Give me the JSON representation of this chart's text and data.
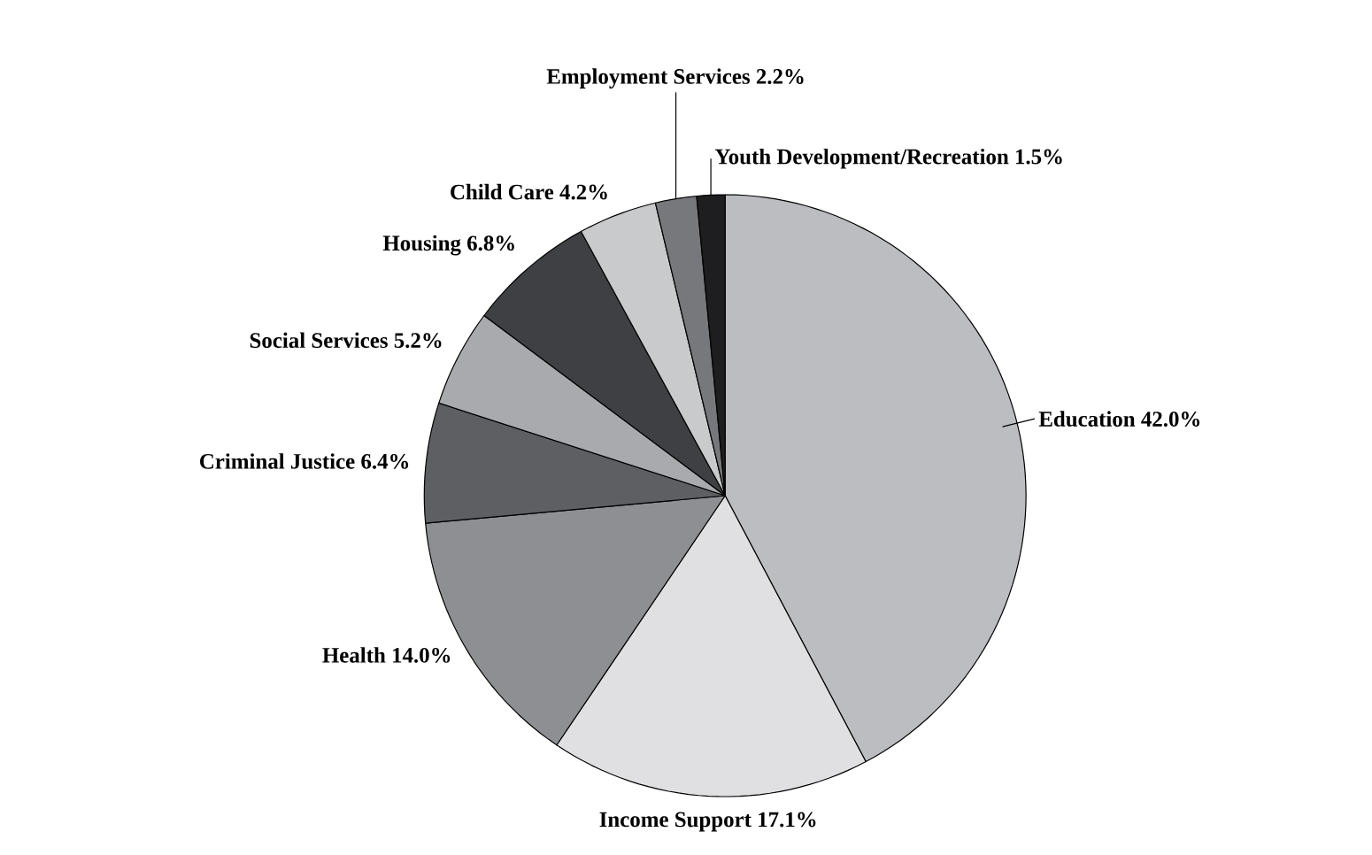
{
  "chart_data": {
    "type": "pie",
    "categories": [
      "Education",
      "Income Support",
      "Health",
      "Criminal Justice",
      "Social Services",
      "Housing",
      "Child Care",
      "Employment Services",
      "Youth Development/Recreation"
    ],
    "values": [
      42.0,
      17.1,
      14.0,
      6.4,
      5.2,
      6.8,
      4.2,
      2.2,
      1.5
    ],
    "value_labels": [
      "42.0%",
      "17.1%",
      "14.0%",
      "6.4%",
      "5.2%",
      "6.8%",
      "4.2%",
      "2.2%",
      "1.5%"
    ],
    "colors": [
      "#bcbdc0",
      "#e0e0e2",
      "#8e8f92",
      "#5e5f62",
      "#a9aaad",
      "#3f4043",
      "#c9cacc",
      "#77787b",
      "#1e1e20"
    ]
  }
}
